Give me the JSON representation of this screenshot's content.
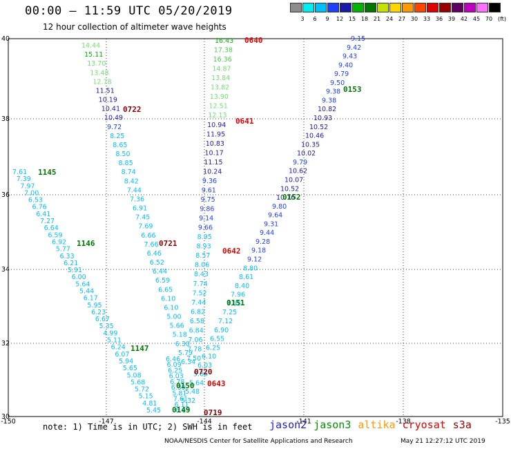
{
  "header": {
    "title": "00:00 – 11:59 UTC 05/20/2019",
    "subtitle": "12 hour collection of altimeter wave heights"
  },
  "color_scale": {
    "unit": "(ft)",
    "labels": [
      "3",
      "6",
      "9",
      "12",
      "15",
      "18",
      "21",
      "24",
      "27",
      "30",
      "33",
      "36",
      "39",
      "42",
      "45",
      "70"
    ],
    "colors": [
      "#8c8c8c",
      "#00eeee",
      "#00bfff",
      "#2040ff",
      "#1a1aa8",
      "#00b400",
      "#007800",
      "#c8e000",
      "#ffd700",
      "#ff9900",
      "#ff4500",
      "#e00000",
      "#9a0000",
      "#600060",
      "#c000c0",
      "#ff70ff",
      "#000000"
    ]
  },
  "map": {
    "lat_labels": [
      "40",
      "38",
      "36",
      "34",
      "32",
      "30"
    ],
    "lon_labels": [
      "-150",
      "-147",
      "-144",
      "-141",
      "-138",
      "-135"
    ],
    "time_labels": [
      {
        "text": "0640",
        "color": "#e00000"
      },
      {
        "text": "0722",
        "color": "#8b0000"
      },
      {
        "text": "0641",
        "color": "#e00000"
      },
      {
        "text": "1145",
        "color": "#007800"
      },
      {
        "text": "0153",
        "color": "#007800"
      },
      {
        "text": "0152",
        "color": "#007800"
      },
      {
        "text": "1146",
        "color": "#007800"
      },
      {
        "text": "0721",
        "color": "#8b0000"
      },
      {
        "text": "0642",
        "color": "#e00000"
      },
      {
        "text": "0151",
        "color": "#007800"
      },
      {
        "text": "1147",
        "color": "#007800"
      },
      {
        "text": "0720",
        "color": "#8b0000"
      },
      {
        "text": "0150",
        "color": "#007800"
      },
      {
        "text": "0643",
        "color": "#e00000"
      },
      {
        "text": "0149",
        "color": "#007800"
      },
      {
        "text": "0719",
        "color": "#8b0000"
      }
    ],
    "track_cryosat_rising": {
      "values": [
        "16.43",
        "17.38",
        "16.36",
        "14.87",
        "13.84",
        "13.82",
        "13.90",
        "12.51",
        "12.13",
        "10.94",
        "11.95",
        "10.83",
        "10.17",
        "11.15",
        "10.24",
        "9.36",
        "9.61",
        "9.75",
        "9.86",
        "9.14",
        "9.66",
        "8.95",
        "8.93",
        "8.57",
        "8.06",
        "8.43",
        "7.74",
        "7.52",
        "7.44",
        "6.82",
        "6.58",
        "6.84",
        "7.06",
        "7.78",
        "7.50"
      ],
      "colors": [
        "#00b400",
        "#4ccd4c",
        "#4ccd4c",
        "#70e070",
        "#70e070",
        "#70e070",
        "#70e070",
        "#70e070",
        "#70e070",
        "#1a1aa8",
        "#1a1aa8",
        "#1a1aa8",
        "#1a1aa8",
        "#1a1aa8",
        "#1a1aa8",
        "#2040ff",
        "#2040ff",
        "#2040ff",
        "#2040ff",
        "#2040ff",
        "#2040ff",
        "#00bfff",
        "#00bfff",
        "#00bfff",
        "#00bfff",
        "#00bfff",
        "#00bfff",
        "#00bfff",
        "#00bfff",
        "#00bfff",
        "#00bfff",
        "#00bfff",
        "#00bfff",
        "#00bfff",
        "#00bfff"
      ]
    },
    "track_cryosat_desc": {
      "values": [
        "14.44",
        "15.11",
        "13.70",
        "13.48",
        "12.78",
        "11.51",
        "10.19",
        "10.41",
        "10.49",
        "9.72",
        "8.25",
        "8.65",
        "8.50",
        "8.85",
        "8.74",
        "8.42",
        "7.44",
        "7.36",
        "6.91",
        "7.45",
        "7.69",
        "6.66",
        "7.66",
        "6.46",
        "6.52",
        "6.44",
        "6.59",
        "6.65",
        "6.10",
        "6.10",
        "5.00",
        "5.66",
        "5.18",
        "6.30",
        "5.79",
        "6.34"
      ],
      "colors": [
        "#70e070",
        "#00b400",
        "#70e070",
        "#70e070",
        "#70e070",
        "#1a1aa8",
        "#1a1aa8",
        "#1a1aa8",
        "#1a1aa8",
        "#2040ff",
        "#00bfff",
        "#00bfff",
        "#00bfff",
        "#00bfff",
        "#00bfff",
        "#00bfff",
        "#00bfff",
        "#00bfff",
        "#00bfff",
        "#00bfff",
        "#00bfff",
        "#00bfff",
        "#00bfff",
        "#00bfff",
        "#00bfff",
        "#00bfff",
        "#00bfff",
        "#00bfff",
        "#00bfff",
        "#00bfff",
        "#00bfff",
        "#00bfff",
        "#00bfff",
        "#00bfff",
        "#00bfff",
        "#00bfff"
      ]
    },
    "track_jason3_west": {
      "values": [
        "7.61",
        "7.39",
        "7.97",
        "7.00",
        "6.53",
        "6.76",
        "6.41",
        "7.27",
        "6.64",
        "6.59",
        "6.92",
        "5.77",
        "6.33",
        "6.21",
        "5.91",
        "6.00",
        "5.64",
        "5.44",
        "6.17",
        "5.95",
        "6.23",
        "6.67",
        "5.35",
        "4.99",
        "5.11",
        "6.24",
        "6.07",
        "5.94",
        "5.65",
        "5.08",
        "5.68",
        "5.72",
        "5.15",
        "4.81",
        "5.45"
      ],
      "colors": [
        "#00bfff"
      ]
    },
    "track_east_upper": {
      "values": [
        "9.15",
        "9.42",
        "9.43",
        "9.40",
        "9.79",
        "9.50",
        "9.38",
        "9.38",
        "10.82",
        "10.93",
        "10.52",
        "10.46",
        "10.35",
        "10.02",
        "9.79",
        "10.62",
        "10.07",
        "10.52",
        "10.16",
        "9.80",
        "9.64",
        "9.31",
        "9.44",
        "9.28",
        "9.18",
        "9.12",
        "8.80",
        "8.61",
        "8.40",
        "7.96",
        "7.65",
        "7.25",
        "7.12",
        "6.90",
        "6.55",
        "6.25",
        "6.10",
        "6.03",
        "5.86",
        "5.64",
        "5.48",
        "5.32"
      ],
      "colors": [
        "#2040ff",
        "#2040ff",
        "#2040ff",
        "#2040ff",
        "#2040ff",
        "#2040ff",
        "#2040ff",
        "#2040ff",
        "#1a1aa8",
        "#1a1aa8",
        "#1a1aa8",
        "#1a1aa8",
        "#1a1aa8",
        "#1a1aa8",
        "#2040ff",
        "#1a1aa8",
        "#1a1aa8",
        "#1a1aa8",
        "#1a1aa8",
        "#2040ff",
        "#2040ff",
        "#2040ff",
        "#2040ff",
        "#2040ff",
        "#2040ff",
        "#2040ff",
        "#00bfff",
        "#00bfff",
        "#00bfff",
        "#00bfff",
        "#00bfff",
        "#00bfff",
        "#00bfff",
        "#00bfff",
        "#00bfff",
        "#00bfff",
        "#00bfff",
        "#00bfff",
        "#00bfff",
        "#00bfff",
        "#00bfff",
        "#00bfff"
      ]
    },
    "track_bottom_cluster": {
      "values": [
        "6.46",
        "6.09",
        "6.25",
        "6.03",
        "6.78",
        "6.39",
        "5.81",
        "7.61",
        "6.11",
        "6.65"
      ],
      "colors": [
        "#00bfff"
      ]
    }
  },
  "bottom": {
    "note": "note: 1) Time is in UTC; 2) SWH is in feet",
    "legend": [
      {
        "label": "jason2",
        "color": "#2020d0"
      },
      {
        "label": "jason3",
        "color": "#009000"
      },
      {
        "label": "altika",
        "color": "#ff9900"
      },
      {
        "label": "cryosat",
        "color": "#e00000"
      },
      {
        "label": "s3a",
        "color": "#9a0000"
      }
    ],
    "footer": "NOAA/NESDIS Center for Satellite Applications and Research",
    "footer_date": "May 21 12:27:12 UTC 2019"
  }
}
